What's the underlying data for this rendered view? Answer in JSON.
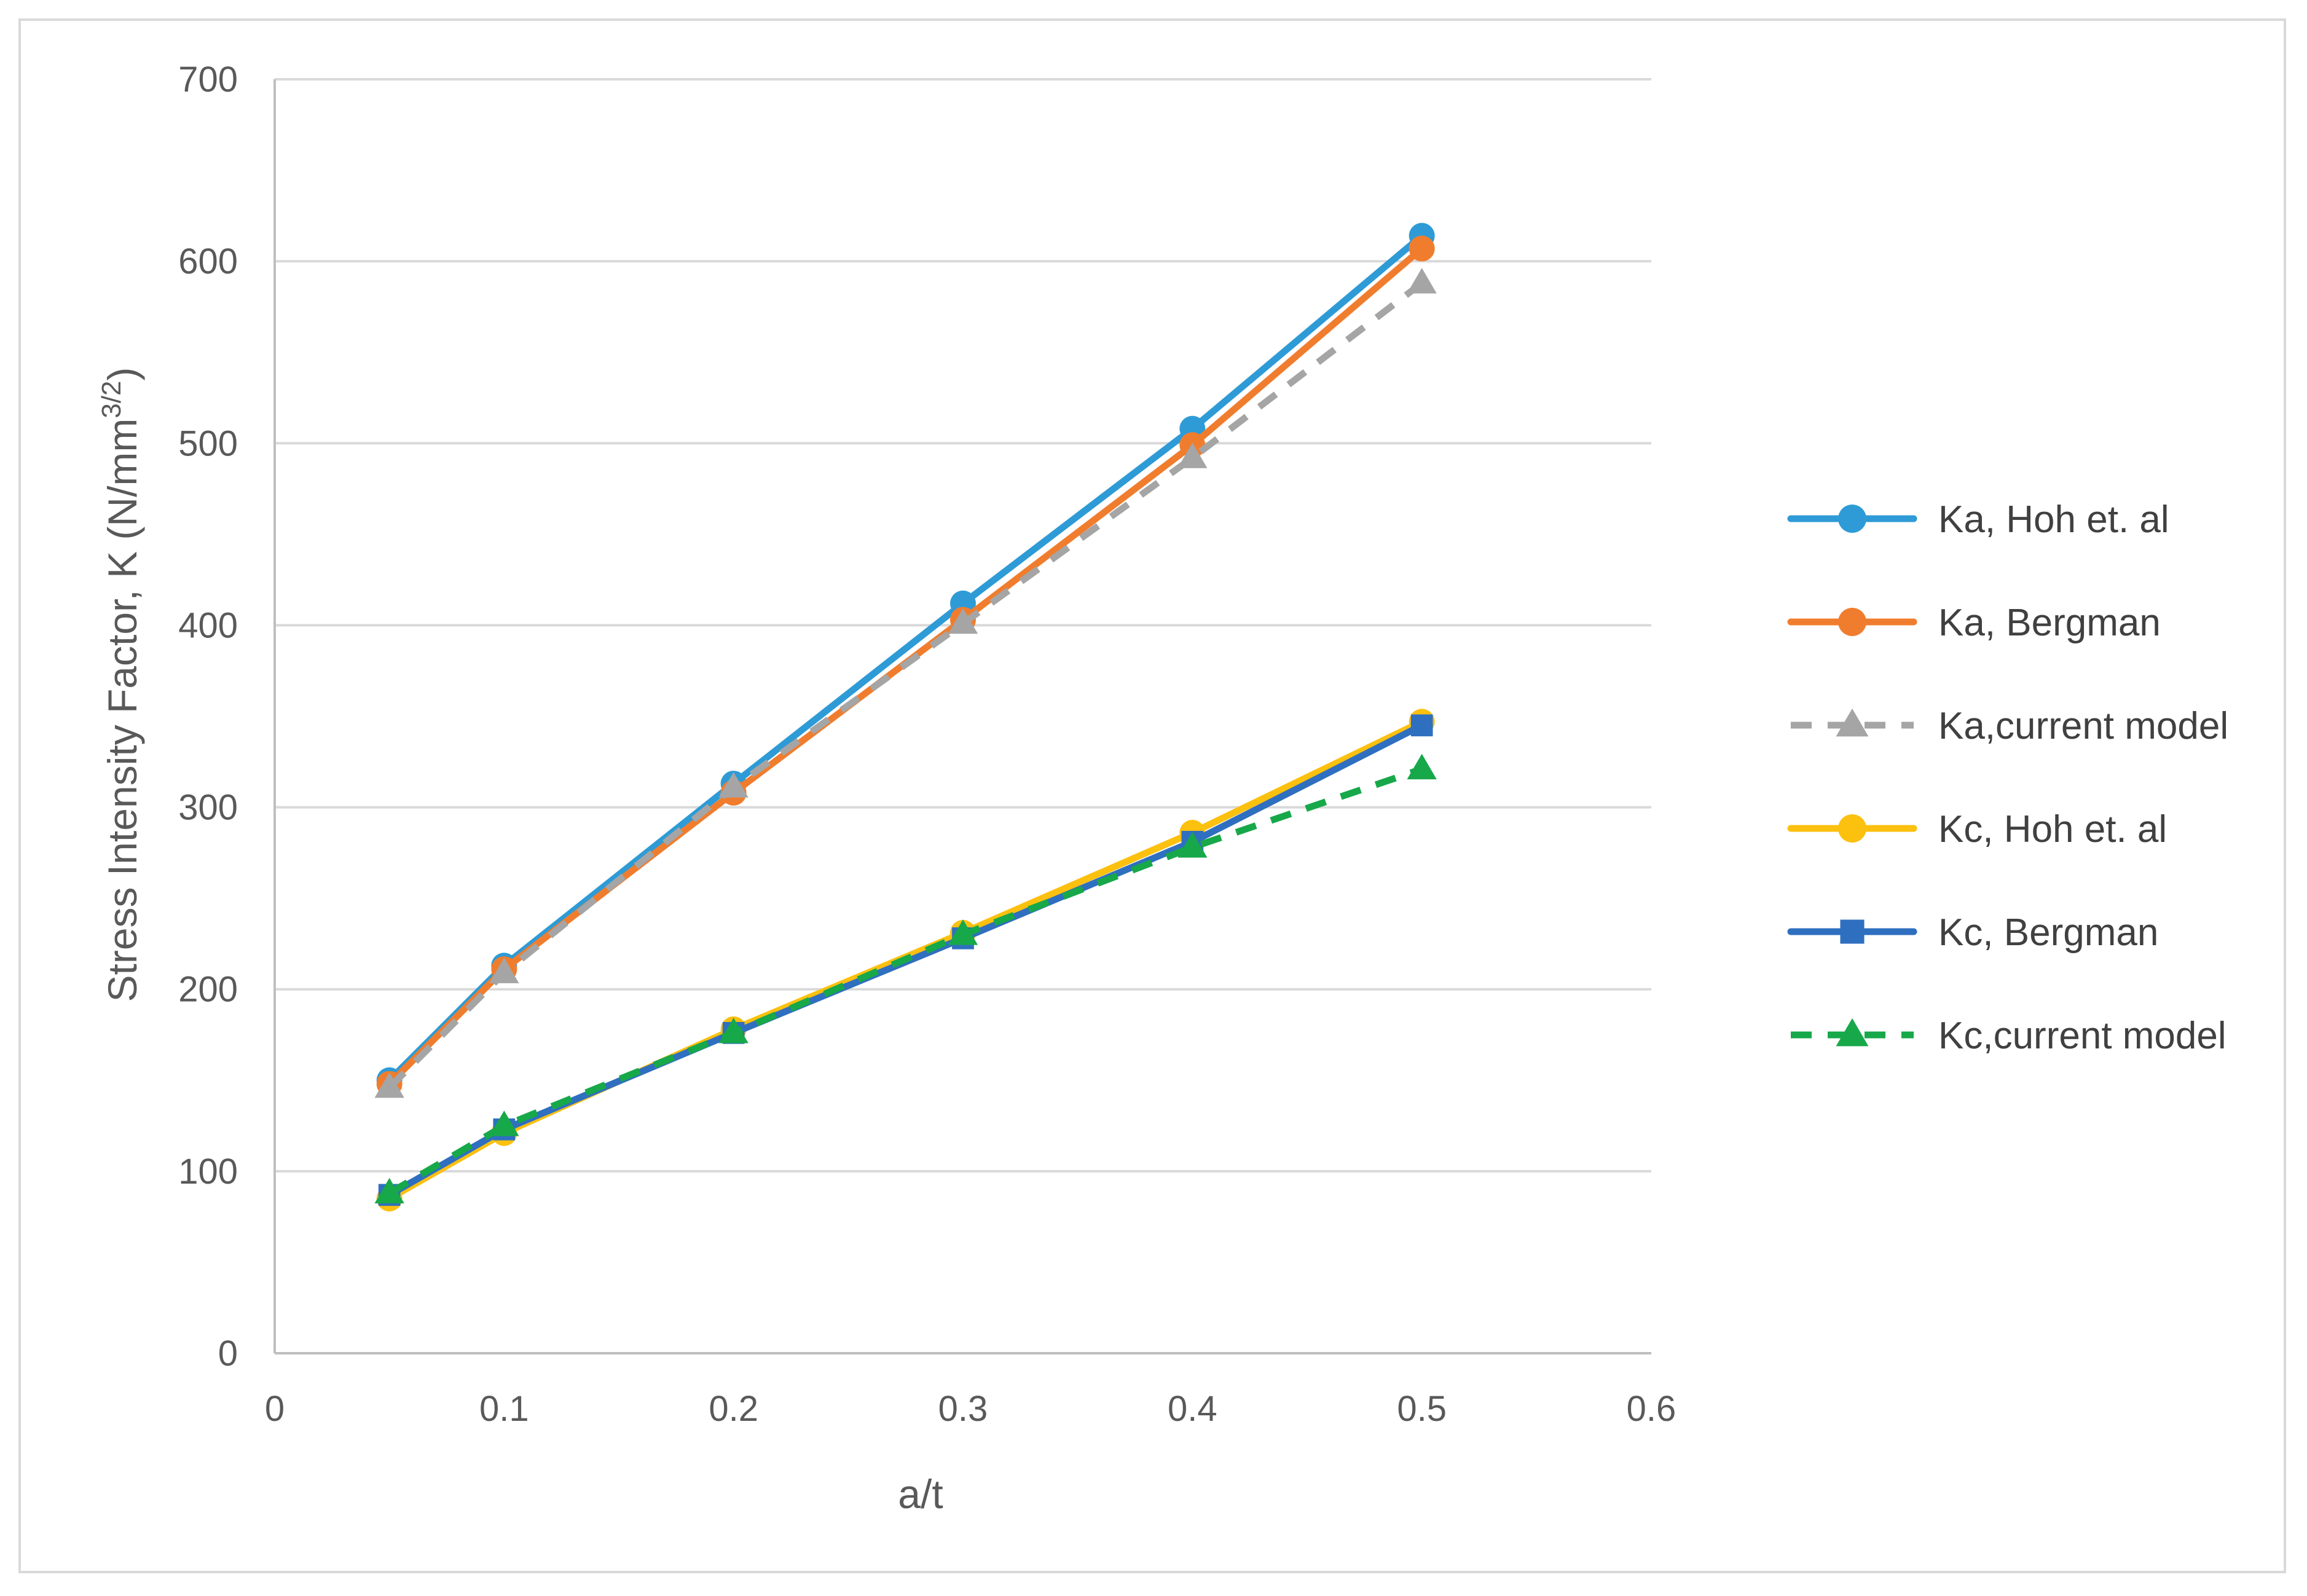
{
  "chart_data": {
    "type": "line",
    "title": "",
    "xlabel": "a/t",
    "ylabel": "Stress Intensity Factor, K (N/mm",
    "ylabel_superscript": "3/2",
    "ylabel_suffix": ")",
    "xlim": [
      0,
      0.6
    ],
    "ylim": [
      0,
      700
    ],
    "xticks": [
      0,
      0.1,
      0.2,
      0.3,
      0.4,
      0.5,
      0.6
    ],
    "xtick_labels": [
      "0",
      "0.1",
      "0.2",
      "0.3",
      "0.4",
      "0.5",
      "0.6"
    ],
    "yticks": [
      0,
      100,
      200,
      300,
      400,
      500,
      600,
      700
    ],
    "ytick_labels": [
      "0",
      "100",
      "200",
      "300",
      "400",
      "500",
      "600",
      "700"
    ],
    "grid": "horizontal",
    "legend_position": "right",
    "x": [
      0.05,
      0.1,
      0.2,
      0.3,
      0.4,
      0.5
    ],
    "series": [
      {
        "name": "Ka, Hoh et. al",
        "color": "#2e9bd6",
        "marker": "circle",
        "dash": "solid",
        "values": [
          150,
          213,
          313,
          412,
          508,
          614
        ]
      },
      {
        "name": "Ka, Bergman",
        "color": "#f07d2e",
        "marker": "circle",
        "dash": "solid",
        "values": [
          148,
          211,
          308,
          403,
          499,
          607
        ]
      },
      {
        "name": "Ka,current model",
        "color": "#a5a5a5",
        "marker": "triangle",
        "dash": "dashed",
        "values": [
          146,
          209,
          311,
          401,
          492,
          588
        ]
      },
      {
        "name": "Kc, Hoh et. al",
        "color": "#fcc00f",
        "marker": "circle",
        "dash": "solid",
        "values": [
          85,
          121,
          178,
          231,
          286,
          347
        ]
      },
      {
        "name": "Kc, Bergman",
        "color": "#2f6fbf",
        "marker": "square",
        "dash": "solid",
        "values": [
          87,
          123,
          176,
          228,
          281,
          345
        ]
      },
      {
        "name": "Kc,current model",
        "color": "#17a84a",
        "marker": "triangle",
        "dash": "dashed",
        "values": [
          88,
          125,
          176,
          230,
          278,
          321
        ]
      }
    ]
  }
}
